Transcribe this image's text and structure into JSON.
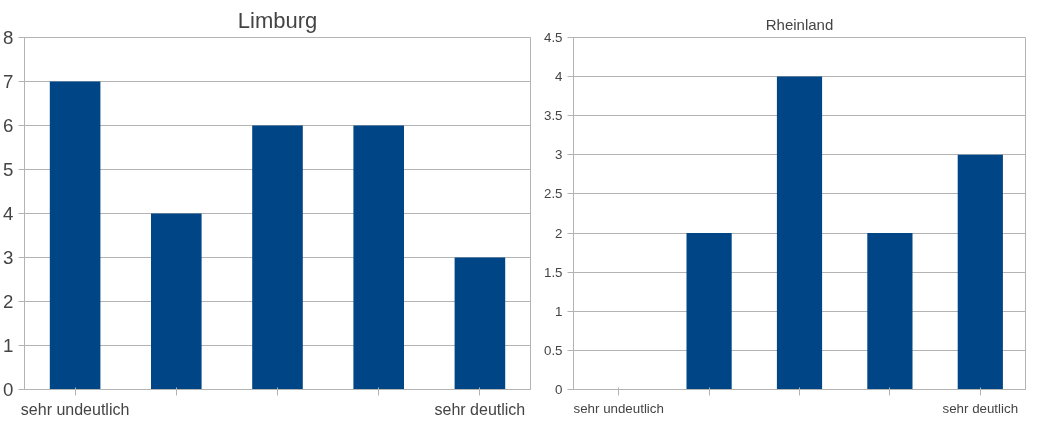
{
  "chart_data": [
    {
      "type": "bar",
      "title": "Limburg",
      "categories": [
        "sehr undeutlich",
        null,
        null,
        null,
        "sehr deutlich"
      ],
      "values": [
        7,
        4,
        6,
        6,
        3
      ],
      "color": "#004586",
      "ylim": [
        0,
        8
      ],
      "yticks": [
        0,
        1,
        2,
        3,
        4,
        5,
        6,
        7,
        8
      ],
      "grid": "y"
    },
    {
      "type": "bar",
      "title": "Rheinland",
      "categories": [
        "sehr undeutlich",
        null,
        null,
        null,
        "sehr deutlich"
      ],
      "values": [
        0,
        2,
        4,
        2,
        3
      ],
      "color": "#004586",
      "ylim": [
        0,
        4.5
      ],
      "yticks": [
        0,
        0.5,
        1,
        1.5,
        2,
        2.5,
        3,
        3.5,
        4,
        4.5
      ],
      "grid": "y"
    }
  ]
}
